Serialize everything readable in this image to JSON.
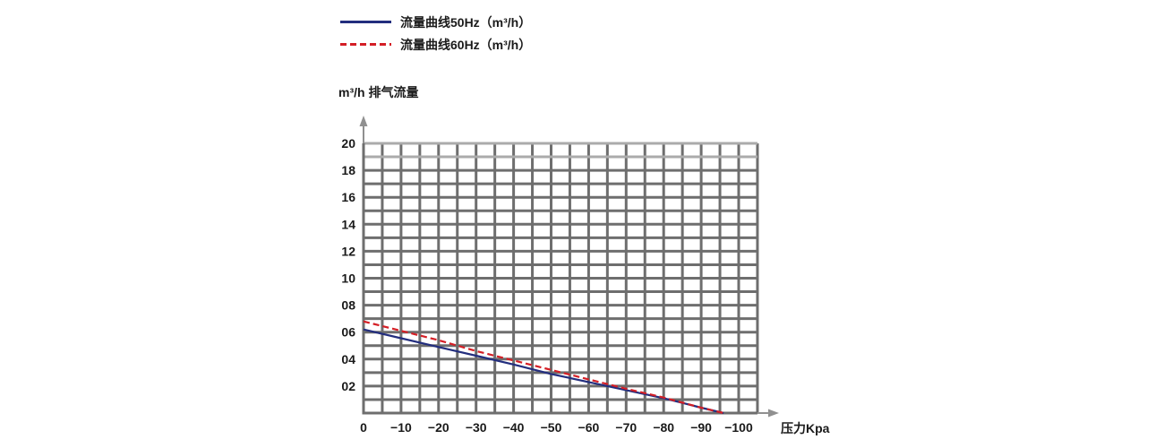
{
  "legend": {
    "items": [
      {
        "label": "流量曲线50Hz（m³/h）",
        "style": "solid",
        "color": "#232e7e"
      },
      {
        "label": "流量曲线60Hz（m³/h）",
        "style": "dashed",
        "color": "#d41f26"
      }
    ]
  },
  "chart_data": {
    "type": "line",
    "title": "",
    "ylabel": "m³/h 排气流量",
    "xlabel": "压力Kpa",
    "xlim": [
      0,
      -105
    ],
    "ylim": [
      0,
      20
    ],
    "grid": {
      "on": true,
      "x_step": 5,
      "y_step": 1
    },
    "legend_position": "top-left",
    "x_tick_values": [
      0,
      -10,
      -20,
      -30,
      -40,
      -50,
      -60,
      -70,
      -80,
      -90,
      -100
    ],
    "x_tick_labels": [
      "0",
      "−10",
      "−20",
      "−30",
      "−40",
      "−50",
      "−60",
      "−70",
      "−80",
      "−90",
      "−100"
    ],
    "y_tick_values": [
      2,
      4,
      6,
      8,
      10,
      12,
      14,
      16,
      18,
      20
    ],
    "y_tick_labels": [
      "02",
      "04",
      "06",
      "08",
      "10",
      "12",
      "14",
      "16",
      "18",
      "20"
    ],
    "series": [
      {
        "name": "流量曲线50Hz（m³/h）",
        "color": "#232e7e",
        "style": "solid",
        "x": [
          0,
          -10,
          -20,
          -30,
          -40,
          -50,
          -60,
          -70,
          -80,
          -90,
          -96
        ],
        "y": [
          6.2,
          5.55,
          4.9,
          4.25,
          3.6,
          2.9,
          2.3,
          1.7,
          1.1,
          0.4,
          0
        ]
      },
      {
        "name": "流量曲线60Hz（m³/h）",
        "color": "#d41f26",
        "style": "dashed",
        "x": [
          0,
          -10,
          -20,
          -30,
          -40,
          -50,
          -60,
          -70,
          -80,
          -90,
          -96
        ],
        "y": [
          6.8,
          6.1,
          5.4,
          4.6,
          3.9,
          3.2,
          2.5,
          1.8,
          1.15,
          0.4,
          0
        ]
      }
    ],
    "colors": {
      "grid_dark": "#6e6e6e",
      "grid_light": "#ababab",
      "axis": "#6e6e6e",
      "arrow": "#909090",
      "text": "#1a1a1a"
    }
  }
}
